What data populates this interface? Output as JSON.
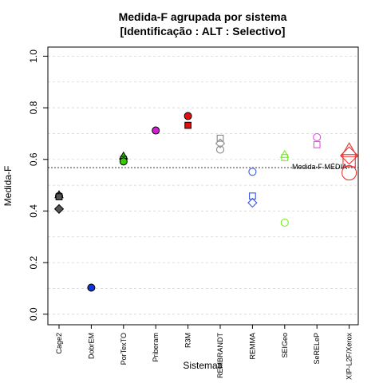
{
  "chart_data": {
    "type": "scatter",
    "title": [
      "Medida-F agrupada por sistema",
      "[Identificação : ALT : Selectivo]"
    ],
    "xlabel": "Sistemas",
    "ylabel": "Medida-F",
    "ylim": [
      0.0,
      1.0
    ],
    "yticks": [
      "0.0",
      "0.2",
      "0.4",
      "0.6",
      "0.8",
      "1.0"
    ],
    "grid": "horizontal dashed",
    "categories": [
      "Cage2",
      "DobrEM",
      "PorTexTO",
      "Priberam",
      "R3M",
      "REMBRANDT",
      "REMMA",
      "SEIGeo",
      "SeRELeP",
      "XIP-L2F/Xerox"
    ],
    "reference_line": {
      "label": "Medida-F MÉDIA",
      "value": 0.568
    },
    "series": [
      {
        "category": "Cage2",
        "color": "#555555",
        "filled": true,
        "points": [
          {
            "shape": "triangle",
            "y": 0.462
          },
          {
            "shape": "circle",
            "y": 0.458
          },
          {
            "shape": "square",
            "y": 0.455
          },
          {
            "shape": "diamond",
            "y": 0.408
          }
        ]
      },
      {
        "category": "DobrEM",
        "color": "#1133dd",
        "filled": true,
        "points": [
          {
            "shape": "circle",
            "y": 0.103
          }
        ]
      },
      {
        "category": "PorTexTO",
        "color": "#33cc00",
        "filled": true,
        "points": [
          {
            "shape": "triangle",
            "y": 0.612
          },
          {
            "shape": "square",
            "y": 0.6
          },
          {
            "shape": "circle",
            "y": 0.592
          }
        ]
      },
      {
        "category": "Priberam",
        "color": "#cc22cc",
        "filled": true,
        "points": [
          {
            "shape": "circle",
            "y": 0.712
          }
        ]
      },
      {
        "category": "R3M",
        "color": "#dd1111",
        "filled": true,
        "points": [
          {
            "shape": "circle",
            "y": 0.768
          },
          {
            "shape": "square",
            "y": 0.732
          }
        ]
      },
      {
        "category": "REMBRANDT",
        "color": "#888888",
        "filled": false,
        "points": [
          {
            "shape": "square",
            "y": 0.682
          },
          {
            "shape": "diamond",
            "y": 0.662
          },
          {
            "shape": "circle",
            "y": 0.638
          }
        ]
      },
      {
        "category": "REMMA",
        "color": "#3355ee",
        "filled": false,
        "points": [
          {
            "shape": "circle",
            "y": 0.552
          },
          {
            "shape": "square",
            "y": 0.458
          },
          {
            "shape": "diamond",
            "y": 0.432
          }
        ]
      },
      {
        "category": "SEIGeo",
        "color": "#77ee22",
        "filled": false,
        "points": [
          {
            "shape": "triangle",
            "y": 0.618
          },
          {
            "shape": "square",
            "y": 0.607
          },
          {
            "shape": "circle",
            "y": 0.355
          }
        ]
      },
      {
        "category": "SeRELeP",
        "color": "#ee44ee",
        "filled": false,
        "points": [
          {
            "shape": "circle",
            "y": 0.686
          },
          {
            "shape": "square",
            "y": 0.657
          }
        ]
      },
      {
        "category": "XIP-L2F/Xerox",
        "color": "#ee3333",
        "filled": false,
        "points": [
          {
            "shape": "triangle",
            "y": 0.632,
            "size": "large"
          },
          {
            "shape": "diamond",
            "y": 0.615,
            "size": "large"
          },
          {
            "shape": "square",
            "y": 0.595,
            "size": "large"
          },
          {
            "shape": "circle",
            "y": 0.548,
            "size": "large"
          }
        ]
      }
    ]
  }
}
